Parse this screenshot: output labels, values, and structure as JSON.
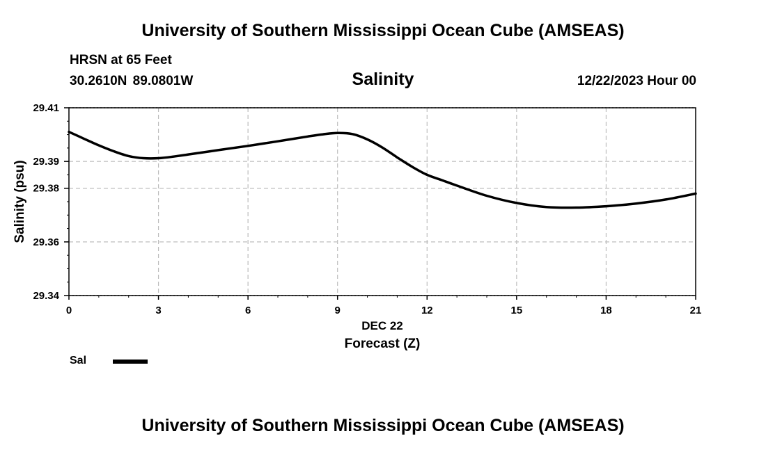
{
  "header": {
    "title": "University of Southern Mississippi Ocean Cube (AMSEAS)",
    "station": "HRSN at 65 Feet",
    "coords": "30.2610N  89.0801W",
    "chart_title": "Salinity",
    "date_hour": "12/22/2023 Hour 00"
  },
  "footer": {
    "title": "University of Southern Mississippi Ocean Cube (AMSEAS)"
  },
  "legend": {
    "label": "Sal",
    "color": "#000000"
  },
  "chart_data": {
    "type": "line",
    "title": "Salinity",
    "xlabel": "Forecast (Z)",
    "xsublabel": "DEC 22",
    "ylabel": "Salinity (psu)",
    "xlim": [
      0,
      21
    ],
    "ylim": [
      29.34,
      29.41
    ],
    "x_ticks": [
      0,
      3,
      6,
      9,
      12,
      15,
      18,
      21
    ],
    "y_ticks": [
      29.34,
      29.36,
      29.38,
      29.39,
      29.41
    ],
    "y_tick_labels": [
      "29.34",
      "29.36",
      "29.38",
      "29.39",
      "29.41"
    ],
    "grid": true,
    "legend_position": "bottom-left",
    "series": [
      {
        "name": "Sal",
        "color": "#000000",
        "x": [
          0,
          0.5,
          1,
          1.5,
          2,
          2.5,
          3,
          3.5,
          4,
          5,
          6,
          7,
          8,
          8.5,
          9,
          9.5,
          10,
          10.5,
          11,
          11.5,
          12,
          12.5,
          13,
          14,
          15,
          16,
          17,
          18,
          19,
          20,
          21
        ],
        "values": [
          29.401,
          29.3985,
          29.396,
          29.3938,
          29.392,
          29.3912,
          29.3912,
          29.3918,
          29.3926,
          29.3942,
          29.3958,
          29.3975,
          29.3993,
          29.4001,
          29.4006,
          29.4002,
          29.3982,
          29.3952,
          29.3915,
          29.388,
          29.385,
          29.383,
          29.381,
          29.3772,
          29.3745,
          29.373,
          29.3728,
          29.3733,
          29.3743,
          29.3758,
          29.378
        ]
      }
    ]
  }
}
